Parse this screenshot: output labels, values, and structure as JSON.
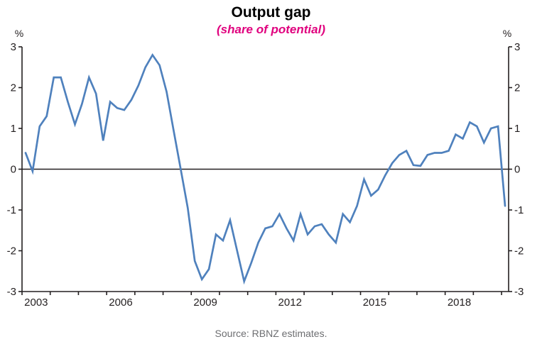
{
  "title": "Output gap",
  "subtitle": "(share of potential)",
  "source": "Source: RBNZ estimates.",
  "axis": {
    "left_unit": "%",
    "right_unit": "%"
  },
  "colors": {
    "line": "#4f81bd",
    "axis": "#231f20",
    "zero_line": "#231f20",
    "tick_text": "#231f20",
    "subtitle": "#e0017e",
    "source_text": "#6d6e71"
  },
  "chart_data": {
    "type": "line",
    "title": "Output gap",
    "subtitle": "(share of potential)",
    "ylabel": "%",
    "ylim": [
      -3,
      3
    ],
    "y_ticks": [
      3,
      2,
      1,
      0,
      -1,
      -2,
      -3
    ],
    "x_axis": {
      "first_year_tick": 2003,
      "last_year_tick": 2020,
      "x_end_fraction": 2020.25,
      "labels": [
        "2003",
        "2006",
        "2009",
        "2012",
        "2015",
        "2018"
      ],
      "label_year_interval": 3
    },
    "grid": false,
    "legend": "none",
    "frequency": "quarterly",
    "quarters": [
      "2003Q1",
      "2003Q2",
      "2003Q3",
      "2003Q4",
      "2004Q1",
      "2004Q2",
      "2004Q3",
      "2004Q4",
      "2005Q1",
      "2005Q2",
      "2005Q3",
      "2005Q4",
      "2006Q1",
      "2006Q2",
      "2006Q3",
      "2006Q4",
      "2007Q1",
      "2007Q2",
      "2007Q3",
      "2007Q4",
      "2008Q1",
      "2008Q2",
      "2008Q3",
      "2008Q4",
      "2009Q1",
      "2009Q2",
      "2009Q3",
      "2009Q4",
      "2010Q1",
      "2010Q2",
      "2010Q3",
      "2010Q4",
      "2011Q1",
      "2011Q2",
      "2011Q3",
      "2011Q4",
      "2012Q1",
      "2012Q2",
      "2012Q3",
      "2012Q4",
      "2013Q1",
      "2013Q2",
      "2013Q3",
      "2013Q4",
      "2014Q1",
      "2014Q2",
      "2014Q3",
      "2014Q4",
      "2015Q1",
      "2015Q2",
      "2015Q3",
      "2015Q4",
      "2016Q1",
      "2016Q2",
      "2016Q3",
      "2016Q4",
      "2017Q1",
      "2017Q2",
      "2017Q3",
      "2017Q4",
      "2018Q1",
      "2018Q2",
      "2018Q3",
      "2018Q4",
      "2019Q1",
      "2019Q2",
      "2019Q3",
      "2019Q4",
      "2020Q1"
    ],
    "values": [
      0.4,
      -0.05,
      1.05,
      1.3,
      2.25,
      2.25,
      1.65,
      1.1,
      1.6,
      2.25,
      1.85,
      0.7,
      1.65,
      1.5,
      1.45,
      1.7,
      2.05,
      2.5,
      2.8,
      2.55,
      1.9,
      0.95,
      0.0,
      -0.95,
      -2.25,
      -2.7,
      -2.45,
      -1.6,
      -1.75,
      -1.25,
      -2.0,
      -2.75,
      -2.3,
      -1.8,
      -1.45,
      -1.4,
      -1.1,
      -1.45,
      -1.75,
      -1.1,
      -1.6,
      -1.4,
      -1.35,
      -1.6,
      -1.8,
      -1.1,
      -1.3,
      -0.9,
      -0.25,
      -0.65,
      -0.5,
      -0.15,
      0.15,
      0.35,
      0.45,
      0.1,
      0.08,
      0.35,
      0.4,
      0.4,
      0.45,
      0.85,
      0.75,
      1.15,
      1.05,
      0.65,
      1.0,
      1.05,
      -0.9
    ]
  },
  "layout_note": ""
}
